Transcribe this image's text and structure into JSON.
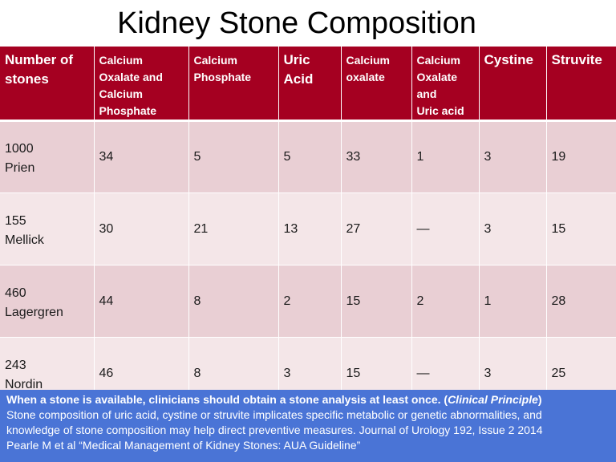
{
  "title": "Kidney Stone Composition",
  "colors": {
    "header_bg": "#a50021",
    "row_odd": "#e9cfd4",
    "row_even": "#f4e6e8",
    "footer_bg": "#4a74d6"
  },
  "table": {
    "headers": [
      [
        "Number of",
        "stones"
      ],
      [
        "Calcium",
        "Oxalate and",
        "Calcium",
        "Phosphate"
      ],
      [
        "Calcium",
        "Phosphate"
      ],
      [
        "Uric",
        "Acid"
      ],
      [
        "Calcium",
        "oxalate"
      ],
      [
        "Calcium",
        "Oxalate",
        "and",
        "Uric acid"
      ],
      [
        "Cystine"
      ],
      [
        "Struvite"
      ]
    ],
    "rows": [
      {
        "count": "1000",
        "author": "Prien",
        "values": [
          "34",
          "5",
          "5",
          "33",
          "1",
          "3",
          "19"
        ]
      },
      {
        "count": "155",
        "author": "Mellick",
        "values": [
          "30",
          "21",
          "13",
          "27",
          "—",
          "3",
          "15"
        ]
      },
      {
        "count": "460",
        "author": "Lagergren",
        "values": [
          "44",
          "8",
          "2",
          "15",
          "2",
          "1",
          "28"
        ]
      },
      {
        "count": "243",
        "author": "Nordin",
        "values": [
          "46",
          "8",
          "3",
          "15",
          "—",
          "3",
          "25"
        ]
      }
    ]
  },
  "footer": {
    "bold_text": "When a stone is available, clinicians should obtain a stone analysis at least once.  (",
    "italic_text": "Clinical Principle",
    "bold_close": ")",
    "line2": "Stone composition of uric acid, cystine or struvite implicates specific metabolic or genetic abnormalities, and",
    "line3": "knowledge of stone composition may help direct preventive measures.  Journal of Urology 192, Issue 2 2014",
    "line4": "Pearle M et al “Medical Management of Kidney Stones: AUA Guideline”"
  }
}
